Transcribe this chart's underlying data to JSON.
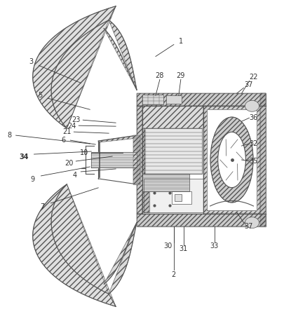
{
  "bg_color": "#ffffff",
  "line_color": "#555555",
  "fig_width": 4.06,
  "fig_height": 4.58,
  "dpi": 100
}
